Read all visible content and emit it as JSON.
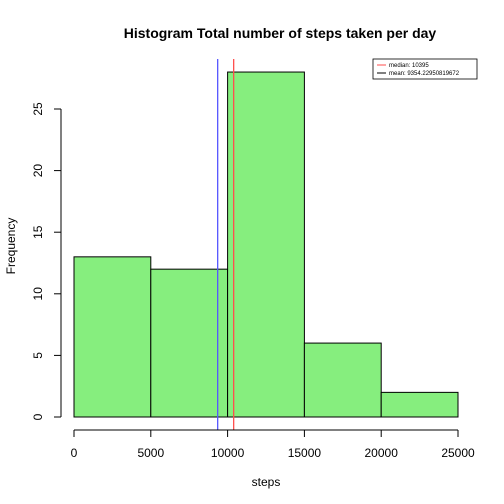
{
  "chart_data": {
    "type": "bar",
    "title": "Histogram Total number of steps taken per day",
    "xlabel": "steps",
    "ylabel": "Frequency",
    "bins": [
      {
        "start": 0,
        "end": 5000,
        "count": 13
      },
      {
        "start": 5000,
        "end": 10000,
        "count": 12
      },
      {
        "start": 10000,
        "end": 15000,
        "count": 28
      },
      {
        "start": 15000,
        "end": 20000,
        "count": 6
      },
      {
        "start": 20000,
        "end": 25000,
        "count": 2
      }
    ],
    "xlim": [
      0,
      25000
    ],
    "ylim": [
      0,
      28
    ],
    "xticks": [
      0,
      5000,
      10000,
      15000,
      20000,
      25000
    ],
    "yticks": [
      0,
      5,
      10,
      15,
      20,
      25
    ],
    "bar_color": "#86EE7E",
    "reference_lines": [
      {
        "label": "median:  10395",
        "value": 10395,
        "color": "#FF4D4D"
      },
      {
        "label": "mean:  9354.22950819672",
        "value": 9354.22950819672,
        "color": "#5555FF"
      }
    ],
    "legend": {
      "position": "top-right",
      "entries": [
        {
          "label": "median:  10395",
          "color": "#FF4D4D"
        },
        {
          "label": "mean:  9354.22950819672",
          "color": "#000000"
        }
      ]
    },
    "grid": false
  }
}
